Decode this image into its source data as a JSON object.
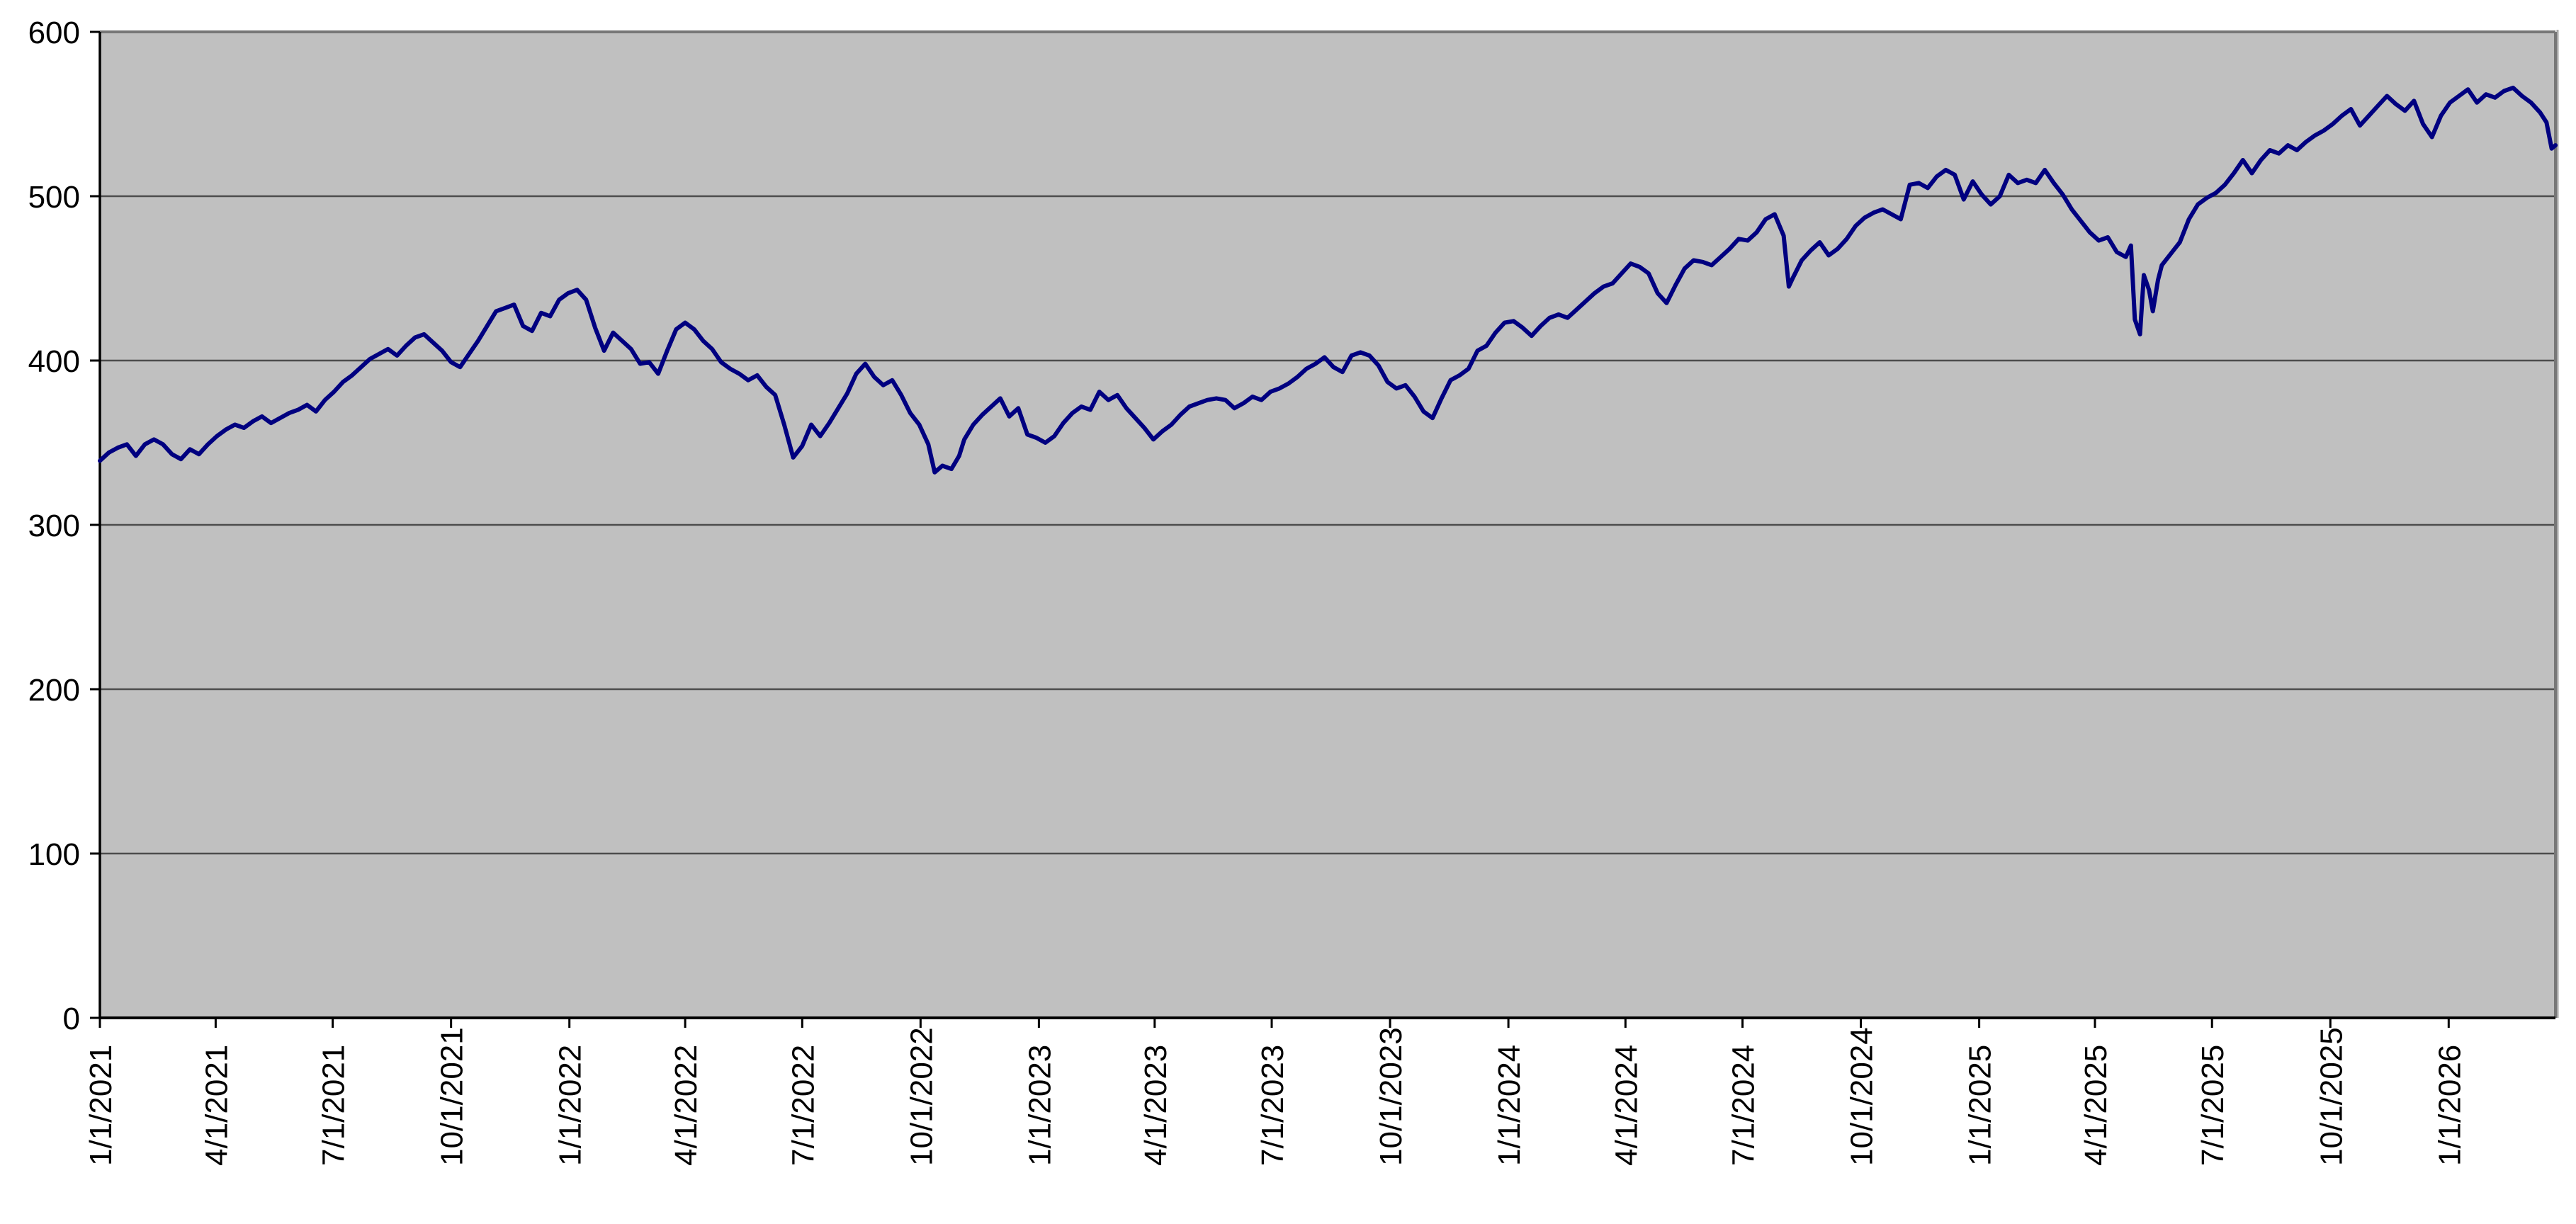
{
  "chart_data": {
    "type": "line",
    "title": "",
    "xlabel": "",
    "ylabel": "",
    "legend": "none",
    "grid": "horizontal",
    "ylim": [
      0,
      600
    ],
    "y_ticks": [
      "0",
      "100",
      "200",
      "300",
      "400",
      "500",
      "600"
    ],
    "x_ticks": [
      "1/1/2021",
      "4/1/2021",
      "7/1/2021",
      "10/1/2021",
      "1/1/2022",
      "4/1/2022",
      "7/1/2022",
      "10/1/2022",
      "1/1/2023",
      "4/1/2023",
      "7/1/2023",
      "10/1/2023",
      "1/1/2024",
      "4/1/2024",
      "7/1/2024",
      "10/1/2024",
      "1/1/2025",
      "4/1/2025",
      "7/1/2025",
      "10/1/2025",
      "1/1/2026"
    ],
    "x_range": [
      "2021-01-01",
      "2026-03-25"
    ],
    "colors": {
      "line": "#000080",
      "plot_background": "#C0C0C0",
      "gridline": "#4D4D4D",
      "axis": "#000000",
      "plot_border": "#777777",
      "plot_border_shadow": "#AAAAAA",
      "page_background": "#FFFFFF",
      "label": "#000000"
    },
    "points": [
      [
        "2021-01-01",
        339
      ],
      [
        "2021-01-08",
        344
      ],
      [
        "2021-01-15",
        347
      ],
      [
        "2021-01-22",
        349
      ],
      [
        "2021-01-29",
        342
      ],
      [
        "2021-02-05",
        349
      ],
      [
        "2021-02-12",
        352
      ],
      [
        "2021-02-19",
        349
      ],
      [
        "2021-02-26",
        343
      ],
      [
        "2021-03-05",
        340
      ],
      [
        "2021-03-12",
        346
      ],
      [
        "2021-03-19",
        343
      ],
      [
        "2021-03-26",
        349
      ],
      [
        "2021-04-02",
        354
      ],
      [
        "2021-04-09",
        358
      ],
      [
        "2021-04-16",
        361
      ],
      [
        "2021-04-23",
        359
      ],
      [
        "2021-04-30",
        363
      ],
      [
        "2021-05-07",
        366
      ],
      [
        "2021-05-14",
        362
      ],
      [
        "2021-05-21",
        365
      ],
      [
        "2021-05-28",
        368
      ],
      [
        "2021-06-04",
        370
      ],
      [
        "2021-06-11",
        373
      ],
      [
        "2021-06-18",
        369
      ],
      [
        "2021-06-25",
        376
      ],
      [
        "2021-07-02",
        381
      ],
      [
        "2021-07-09",
        387
      ],
      [
        "2021-07-16",
        391
      ],
      [
        "2021-07-23",
        396
      ],
      [
        "2021-07-30",
        401
      ],
      [
        "2021-08-06",
        404
      ],
      [
        "2021-08-13",
        407
      ],
      [
        "2021-08-20",
        403
      ],
      [
        "2021-08-27",
        409
      ],
      [
        "2021-09-03",
        414
      ],
      [
        "2021-09-10",
        416
      ],
      [
        "2021-09-17",
        411
      ],
      [
        "2021-09-24",
        406
      ],
      [
        "2021-10-01",
        399
      ],
      [
        "2021-10-08",
        396
      ],
      [
        "2021-10-15",
        404
      ],
      [
        "2021-10-22",
        412
      ],
      [
        "2021-10-29",
        421
      ],
      [
        "2021-11-05",
        430
      ],
      [
        "2021-11-12",
        432
      ],
      [
        "2021-11-19",
        434
      ],
      [
        "2021-11-26",
        421
      ],
      [
        "2021-12-03",
        418
      ],
      [
        "2021-12-10",
        429
      ],
      [
        "2021-12-17",
        427
      ],
      [
        "2021-12-24",
        437
      ],
      [
        "2021-12-31",
        441
      ],
      [
        "2022-01-07",
        443
      ],
      [
        "2022-01-14",
        437
      ],
      [
        "2022-01-21",
        420
      ],
      [
        "2022-01-28",
        406
      ],
      [
        "2022-02-04",
        417
      ],
      [
        "2022-02-11",
        412
      ],
      [
        "2022-02-18",
        407
      ],
      [
        "2022-02-25",
        398
      ],
      [
        "2022-03-04",
        399
      ],
      [
        "2022-03-11",
        392
      ],
      [
        "2022-03-18",
        406
      ],
      [
        "2022-03-25",
        419
      ],
      [
        "2022-04-01",
        423
      ],
      [
        "2022-04-08",
        419
      ],
      [
        "2022-04-15",
        412
      ],
      [
        "2022-04-22",
        407
      ],
      [
        "2022-04-29",
        399
      ],
      [
        "2022-05-06",
        395
      ],
      [
        "2022-05-13",
        392
      ],
      [
        "2022-05-20",
        388
      ],
      [
        "2022-05-27",
        391
      ],
      [
        "2022-06-03",
        384
      ],
      [
        "2022-06-10",
        379
      ],
      [
        "2022-06-17",
        361
      ],
      [
        "2022-06-24",
        341
      ],
      [
        "2022-07-01",
        348
      ],
      [
        "2022-07-08",
        361
      ],
      [
        "2022-07-15",
        354
      ],
      [
        "2022-07-22",
        362
      ],
      [
        "2022-07-29",
        371
      ],
      [
        "2022-08-05",
        380
      ],
      [
        "2022-08-12",
        392
      ],
      [
        "2022-08-19",
        398
      ],
      [
        "2022-08-26",
        390
      ],
      [
        "2022-09-02",
        385
      ],
      [
        "2022-09-09",
        388
      ],
      [
        "2022-09-16",
        379
      ],
      [
        "2022-09-23",
        368
      ],
      [
        "2022-09-30",
        361
      ],
      [
        "2022-10-07",
        349
      ],
      [
        "2022-10-12",
        332
      ],
      [
        "2022-10-18",
        336
      ],
      [
        "2022-10-25",
        334
      ],
      [
        "2022-10-31",
        342
      ],
      [
        "2022-11-04",
        352
      ],
      [
        "2022-11-11",
        361
      ],
      [
        "2022-11-18",
        367
      ],
      [
        "2022-11-25",
        372
      ],
      [
        "2022-12-02",
        377
      ],
      [
        "2022-12-09",
        366
      ],
      [
        "2022-12-16",
        371
      ],
      [
        "2022-12-23",
        355
      ],
      [
        "2022-12-30",
        353
      ],
      [
        "2023-01-06",
        350
      ],
      [
        "2023-01-13",
        354
      ],
      [
        "2023-01-20",
        362
      ],
      [
        "2023-01-27",
        368
      ],
      [
        "2023-02-03",
        372
      ],
      [
        "2023-02-10",
        370
      ],
      [
        "2023-02-17",
        381
      ],
      [
        "2023-02-24",
        376
      ],
      [
        "2023-03-03",
        379
      ],
      [
        "2023-03-10",
        371
      ],
      [
        "2023-03-17",
        365
      ],
      [
        "2023-03-24",
        359
      ],
      [
        "2023-03-31",
        352
      ],
      [
        "2023-04-07",
        357
      ],
      [
        "2023-04-14",
        361
      ],
      [
        "2023-04-21",
        367
      ],
      [
        "2023-04-28",
        372
      ],
      [
        "2023-05-05",
        374
      ],
      [
        "2023-05-12",
        376
      ],
      [
        "2023-05-19",
        377
      ],
      [
        "2023-05-26",
        376
      ],
      [
        "2023-06-02",
        371
      ],
      [
        "2023-06-09",
        374
      ],
      [
        "2023-06-16",
        378
      ],
      [
        "2023-06-23",
        376
      ],
      [
        "2023-06-30",
        381
      ],
      [
        "2023-07-07",
        383
      ],
      [
        "2023-07-14",
        386
      ],
      [
        "2023-07-21",
        390
      ],
      [
        "2023-07-28",
        395
      ],
      [
        "2023-08-04",
        398
      ],
      [
        "2023-08-11",
        402
      ],
      [
        "2023-08-18",
        396
      ],
      [
        "2023-08-25",
        393
      ],
      [
        "2023-09-01",
        403
      ],
      [
        "2023-09-08",
        405
      ],
      [
        "2023-09-15",
        403
      ],
      [
        "2023-09-22",
        397
      ],
      [
        "2023-09-29",
        387
      ],
      [
        "2023-10-06",
        383
      ],
      [
        "2023-10-13",
        385
      ],
      [
        "2023-10-20",
        378
      ],
      [
        "2023-10-27",
        369
      ],
      [
        "2023-11-03",
        365
      ],
      [
        "2023-11-10",
        377
      ],
      [
        "2023-11-17",
        388
      ],
      [
        "2023-11-24",
        391
      ],
      [
        "2023-12-01",
        395
      ],
      [
        "2023-12-08",
        406
      ],
      [
        "2023-12-15",
        409
      ],
      [
        "2023-12-22",
        417
      ],
      [
        "2023-12-29",
        423
      ],
      [
        "2024-01-05",
        424
      ],
      [
        "2024-01-12",
        420
      ],
      [
        "2024-01-19",
        415
      ],
      [
        "2024-01-26",
        421
      ],
      [
        "2024-02-02",
        426
      ],
      [
        "2024-02-09",
        428
      ],
      [
        "2024-02-16",
        426
      ],
      [
        "2024-02-23",
        431
      ],
      [
        "2024-03-01",
        436
      ],
      [
        "2024-03-08",
        441
      ],
      [
        "2024-03-15",
        445
      ],
      [
        "2024-03-22",
        447
      ],
      [
        "2024-03-29",
        453
      ],
      [
        "2024-04-05",
        459
      ],
      [
        "2024-04-12",
        457
      ],
      [
        "2024-04-19",
        453
      ],
      [
        "2024-04-26",
        441
      ],
      [
        "2024-05-03",
        435
      ],
      [
        "2024-05-10",
        446
      ],
      [
        "2024-05-17",
        456
      ],
      [
        "2024-05-24",
        461
      ],
      [
        "2024-05-31",
        460
      ],
      [
        "2024-06-07",
        458
      ],
      [
        "2024-06-14",
        463
      ],
      [
        "2024-06-21",
        468
      ],
      [
        "2024-06-28",
        474
      ],
      [
        "2024-07-05",
        473
      ],
      [
        "2024-07-12",
        478
      ],
      [
        "2024-07-19",
        486
      ],
      [
        "2024-07-26",
        489
      ],
      [
        "2024-08-02",
        476
      ],
      [
        "2024-08-06",
        445
      ],
      [
        "2024-08-09",
        450
      ],
      [
        "2024-08-16",
        461
      ],
      [
        "2024-08-23",
        467
      ],
      [
        "2024-08-30",
        472
      ],
      [
        "2024-09-06",
        464
      ],
      [
        "2024-09-13",
        468
      ],
      [
        "2024-09-20",
        474
      ],
      [
        "2024-09-27",
        482
      ],
      [
        "2024-10-04",
        487
      ],
      [
        "2024-10-11",
        490
      ],
      [
        "2024-10-18",
        492
      ],
      [
        "2024-10-25",
        489
      ],
      [
        "2024-11-01",
        486
      ],
      [
        "2024-11-08",
        507
      ],
      [
        "2024-11-15",
        508
      ],
      [
        "2024-11-22",
        505
      ],
      [
        "2024-11-29",
        512
      ],
      [
        "2024-12-06",
        516
      ],
      [
        "2024-12-13",
        513
      ],
      [
        "2024-12-20",
        498
      ],
      [
        "2024-12-27",
        509
      ],
      [
        "2025-01-03",
        501
      ],
      [
        "2025-01-10",
        495
      ],
      [
        "2025-01-17",
        500
      ],
      [
        "2025-01-24",
        513
      ],
      [
        "2025-01-31",
        508
      ],
      [
        "2025-02-07",
        510
      ],
      [
        "2025-02-14",
        508
      ],
      [
        "2025-02-21",
        516
      ],
      [
        "2025-02-28",
        508
      ],
      [
        "2025-03-07",
        501
      ],
      [
        "2025-03-14",
        492
      ],
      [
        "2025-03-21",
        485
      ],
      [
        "2025-03-28",
        478
      ],
      [
        "2025-04-04",
        473
      ],
      [
        "2025-04-11",
        475
      ],
      [
        "2025-04-18",
        466
      ],
      [
        "2025-04-25",
        463
      ],
      [
        "2025-04-29",
        470
      ],
      [
        "2025-05-02",
        425
      ],
      [
        "2025-05-06",
        416
      ],
      [
        "2025-05-09",
        452
      ],
      [
        "2025-05-13",
        443
      ],
      [
        "2025-05-16",
        430
      ],
      [
        "2025-05-20",
        449
      ],
      [
        "2025-05-23",
        458
      ],
      [
        "2025-05-30",
        465
      ],
      [
        "2025-06-06",
        472
      ],
      [
        "2025-06-13",
        486
      ],
      [
        "2025-06-20",
        495
      ],
      [
        "2025-06-27",
        499
      ],
      [
        "2025-07-04",
        502
      ],
      [
        "2025-07-11",
        507
      ],
      [
        "2025-07-18",
        514
      ],
      [
        "2025-07-25",
        522
      ],
      [
        "2025-08-01",
        514
      ],
      [
        "2025-08-08",
        522
      ],
      [
        "2025-08-15",
        528
      ],
      [
        "2025-08-22",
        526
      ],
      [
        "2025-08-29",
        531
      ],
      [
        "2025-09-05",
        528
      ],
      [
        "2025-09-12",
        533
      ],
      [
        "2025-09-19",
        537
      ],
      [
        "2025-09-26",
        540
      ],
      [
        "2025-10-03",
        544
      ],
      [
        "2025-10-10",
        549
      ],
      [
        "2025-10-17",
        553
      ],
      [
        "2025-10-24",
        543
      ],
      [
        "2025-10-31",
        549
      ],
      [
        "2025-11-07",
        555
      ],
      [
        "2025-11-14",
        561
      ],
      [
        "2025-11-21",
        556
      ],
      [
        "2025-11-28",
        552
      ],
      [
        "2025-12-05",
        558
      ],
      [
        "2025-12-12",
        544
      ],
      [
        "2025-12-19",
        536
      ],
      [
        "2025-12-26",
        549
      ],
      [
        "2026-01-02",
        557
      ],
      [
        "2026-01-09",
        561
      ],
      [
        "2026-01-16",
        565
      ],
      [
        "2026-01-23",
        557
      ],
      [
        "2026-01-30",
        562
      ],
      [
        "2026-02-06",
        560
      ],
      [
        "2026-02-13",
        564
      ],
      [
        "2026-02-20",
        566
      ],
      [
        "2026-02-27",
        561
      ],
      [
        "2026-03-06",
        557
      ],
      [
        "2026-03-13",
        551
      ],
      [
        "2026-03-18",
        545
      ],
      [
        "2026-03-22",
        529
      ],
      [
        "2026-03-25",
        531
      ]
    ]
  }
}
